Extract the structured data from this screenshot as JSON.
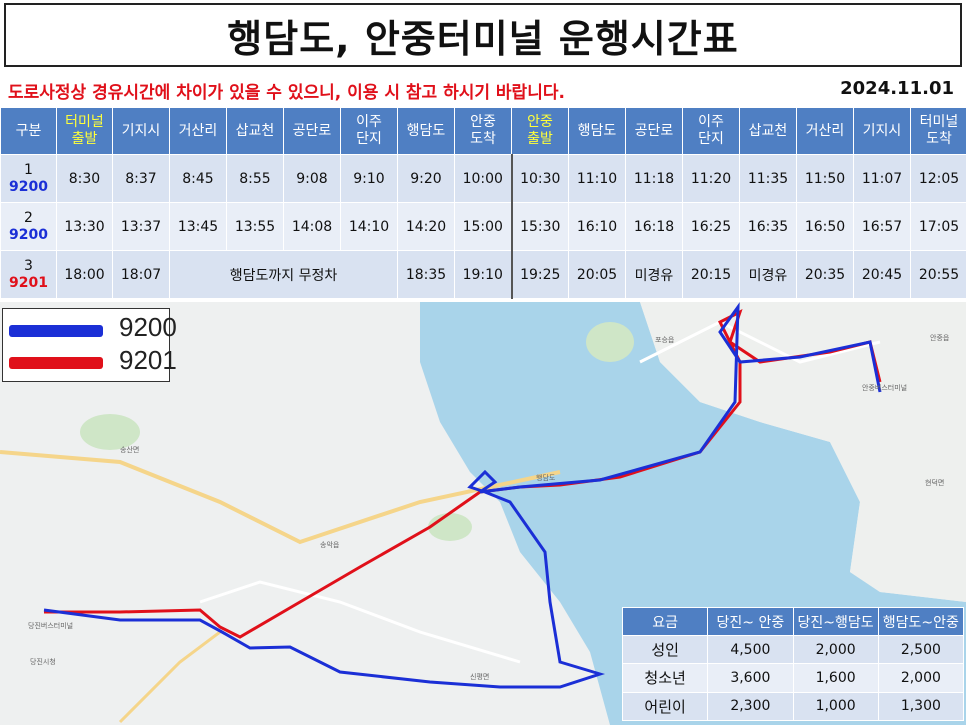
{
  "title": "행담도, 안중터미널 운행시간표",
  "notice": "도로사정상 경유시간에 차이가 있을 수 있으니, 이용 시 참고 하시기 바랍니다.",
  "date": "2024.11.01",
  "colors": {
    "header": "#4f7fc3",
    "highlight": "#ffff3a",
    "route_9200": "#1b2fd6",
    "route_9201": "#e0101a"
  },
  "timetable": {
    "headers": [
      {
        "line1": "구분",
        "line2": ""
      },
      {
        "line1": "터미널",
        "line2": "출발"
      },
      {
        "line1": "기지시",
        "line2": ""
      },
      {
        "line1": "거산리",
        "line2": ""
      },
      {
        "line1": "삽교천",
        "line2": ""
      },
      {
        "line1": "공단로",
        "line2": ""
      },
      {
        "line1": "이주",
        "line2": "단지"
      },
      {
        "line1": "행담도",
        "line2": ""
      },
      {
        "line1": "안중",
        "line2": "도착"
      },
      {
        "line1": "안중",
        "line2": "출발"
      },
      {
        "line1": "행담도",
        "line2": ""
      },
      {
        "line1": "공단로",
        "line2": ""
      },
      {
        "line1": "이주",
        "line2": "단지"
      },
      {
        "line1": "삽교천",
        "line2": ""
      },
      {
        "line1": "거산리",
        "line2": ""
      },
      {
        "line1": "기지시",
        "line2": ""
      },
      {
        "line1": "터미널",
        "line2": "도착"
      }
    ],
    "rows": [
      {
        "no": "1",
        "route": "9200",
        "times": [
          "8:30",
          "8:37",
          "8:45",
          "8:55",
          "9:08",
          "9:10",
          "9:20",
          "10:00",
          "10:30",
          "11:10",
          "11:18",
          "11:20",
          "11:35",
          "11:50",
          "11:07",
          "12:05"
        ]
      },
      {
        "no": "2",
        "route": "9200",
        "times": [
          "13:30",
          "13:37",
          "13:45",
          "13:55",
          "14:08",
          "14:10",
          "14:20",
          "15:00",
          "15:30",
          "16:10",
          "16:18",
          "16:25",
          "16:35",
          "16:50",
          "16:57",
          "17:05"
        ]
      },
      {
        "no": "3",
        "route": "9201",
        "times": [
          "18:00",
          "18:07",
          "",
          "",
          "",
          "",
          "18:35",
          "19:10",
          "19:25",
          "20:05",
          "미경유",
          "20:15",
          "미경유",
          "20:35",
          "20:45",
          "20:55"
        ],
        "nonstop": "행담도까지 무정차"
      }
    ]
  },
  "legend": [
    {
      "route": "9200",
      "color": "#1b2fd6"
    },
    {
      "route": "9201",
      "color": "#e0101a"
    }
  ],
  "map_labels": {
    "songsan": "송산면",
    "songak": "송악읍",
    "dangjin_terminal": "당진버스터미널",
    "dangjin_city": "당진시청",
    "haengdamdo": "행담도",
    "anjung_terminal": "안중버스터미널",
    "sinpyeong": "신평면",
    "poseung": "포승읍",
    "hyeondeok": "현덕면",
    "anjung": "안중읍"
  },
  "fare": {
    "headers": [
      "요금",
      "당진~ 안중",
      "당진~행담도",
      "행담도~안중"
    ],
    "rows": [
      {
        "category": "성인",
        "values": [
          "4,500",
          "2,000",
          "2,500"
        ]
      },
      {
        "category": "청소년",
        "values": [
          "3,600",
          "1,600",
          "2,000"
        ]
      },
      {
        "category": "어린이",
        "values": [
          "2,300",
          "1,000",
          "1,300"
        ]
      }
    ]
  }
}
